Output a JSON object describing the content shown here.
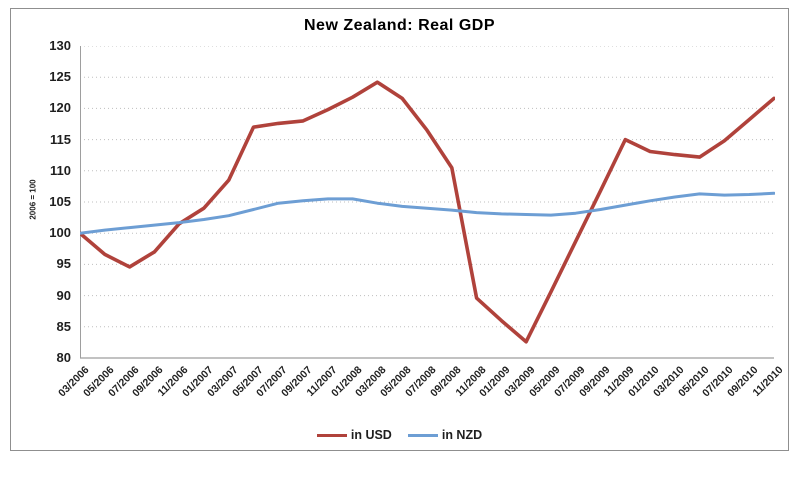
{
  "chart_data": {
    "type": "line",
    "title": "New Zealand: Real GDP",
    "y_axis_title": "2006 = 100",
    "legend_position": "bottom",
    "grid": "horizontal-dotted",
    "ylim": [
      80,
      130
    ],
    "y_tick_step": 5,
    "y_ticks": [
      130,
      125,
      120,
      115,
      110,
      105,
      100,
      95,
      90,
      85,
      80
    ],
    "categories": [
      "03/2006",
      "05/2006",
      "07/2006",
      "09/2006",
      "11/2006",
      "01/2007",
      "03/2007",
      "05/2007",
      "07/2007",
      "09/2007",
      "11/2007",
      "01/2008",
      "03/2008",
      "05/2008",
      "07/2008",
      "09/2008",
      "11/2008",
      "01/2009",
      "03/2009",
      "05/2009",
      "07/2009",
      "09/2009",
      "11/2009",
      "01/2010",
      "03/2010",
      "05/2010",
      "07/2010",
      "09/2010",
      "11/2010"
    ],
    "series": [
      {
        "name": "in USD",
        "color": "#b0423b",
        "values": [
          100.0,
          96.6,
          94.6,
          97.0,
          101.5,
          104.0,
          108.5,
          117.0,
          117.6,
          118.0,
          119.8,
          121.8,
          124.2,
          121.6,
          116.5,
          110.5,
          89.6,
          86.0,
          82.6,
          90.6,
          98.7,
          106.8,
          115.0,
          113.1,
          112.6,
          112.2,
          114.8,
          118.2,
          121.6
        ]
      },
      {
        "name": "in NZD",
        "color": "#6d9ed4",
        "values": [
          100.0,
          100.5,
          100.9,
          101.3,
          101.7,
          102.2,
          102.8,
          103.8,
          104.8,
          105.2,
          105.5,
          105.5,
          104.8,
          104.3,
          104.0,
          103.7,
          103.3,
          103.1,
          103.0,
          102.9,
          103.2,
          103.8,
          104.5,
          105.2,
          105.8,
          106.3,
          106.1,
          106.2,
          106.4
        ]
      }
    ]
  },
  "colors": {
    "gridline": "#bfbfbf",
    "axis_line": "#9e9e9e",
    "frame_border": "#8f8f8f",
    "text": "#1f1f1f",
    "background": "#ffffff"
  }
}
